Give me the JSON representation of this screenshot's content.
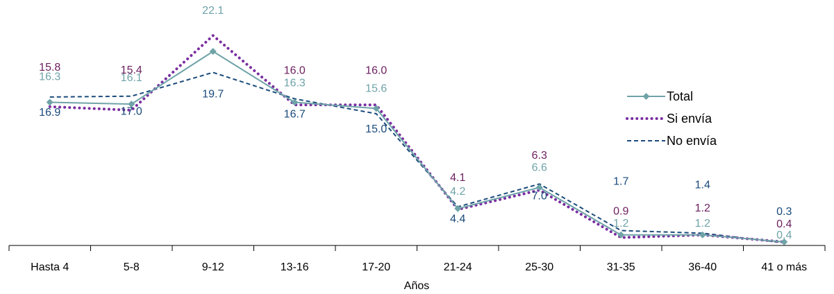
{
  "chart_data": {
    "type": "line",
    "categories": [
      "Hasta 4",
      "5-8",
      "9-12",
      "13-16",
      "17-20",
      "21-24",
      "25-30",
      "31-35",
      "36-40",
      "41 o más"
    ],
    "xlabel": "Años",
    "ylabel": "",
    "ylim": [
      0,
      27
    ],
    "grid": false,
    "legend_position": "right",
    "series": [
      {
        "name": "Total",
        "values": [
          16.3,
          16.1,
          22.1,
          16.3,
          15.6,
          4.2,
          6.6,
          1.2,
          1.2,
          0.4
        ],
        "color": "#6fa3a8",
        "line_style": "solid",
        "marker": "diamond",
        "labels": [
          "16.3",
          "16.1",
          "22.1",
          "16.3",
          "15.6",
          "4.2",
          "6.6",
          "1.2",
          "1.2",
          "0.4"
        ]
      },
      {
        "name": "Si envía",
        "values": [
          15.8,
          15.4,
          23.9,
          16.0,
          16.0,
          4.1,
          6.3,
          0.9,
          1.2,
          0.4
        ],
        "color": "#7a2ea0",
        "label_color": "#6b1f5e",
        "line_style": "dotted",
        "labels": [
          "15.8",
          "15.4",
          "23.9",
          "16.0",
          "16.0",
          "4.1",
          "6.3",
          "0.9",
          "1.2",
          "0.4"
        ]
      },
      {
        "name": "No envía",
        "values": [
          16.9,
          17.0,
          19.7,
          16.7,
          15.0,
          4.4,
          7.0,
          1.7,
          1.4,
          0.3
        ],
        "color": "#1a4a7a",
        "line_style": "dashed",
        "labels": [
          "16.9",
          "17.0",
          "19.7",
          "16.7",
          "15.0",
          "4.4",
          "7.0",
          "1.7",
          "1.4",
          "0.3"
        ]
      }
    ]
  }
}
